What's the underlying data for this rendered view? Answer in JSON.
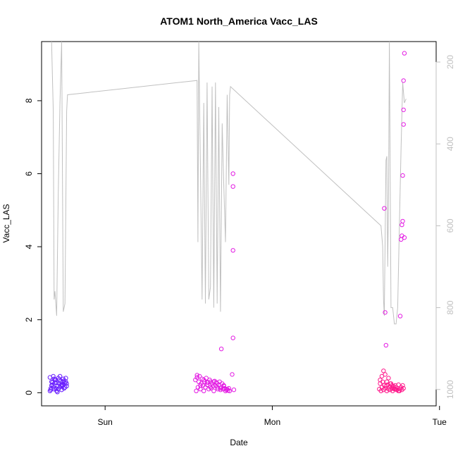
{
  "chart_data": {
    "type": "scatter",
    "title": "ATOM1 North_America Vacc_LAS",
    "xlabel": "Date",
    "ylabel": "Vacc_LAS",
    "x_tick_labels": [
      "Sun",
      "Mon",
      "Tue"
    ],
    "xlim": [
      -0.38,
      1.98
    ],
    "ylim": [
      -0.36,
      9.62
    ],
    "y_ticks": [
      0,
      2,
      4,
      6,
      8
    ],
    "y2_ticks": [
      200,
      400,
      600,
      800,
      1000
    ],
    "y2lim": [
      1040,
      150
    ],
    "y2_reversed": true,
    "grid": false,
    "legend": "none",
    "colors": {
      "line": "#c0c0c0",
      "right_axis": "#c0c0c0",
      "cluster1": "#6a1fff",
      "cluster2": "#e31be3",
      "cluster3": "#ff1a8c"
    },
    "line_series": {
      "axis": "right",
      "x": [
        -0.32,
        -0.31,
        -0.305,
        -0.3,
        -0.29,
        -0.28,
        -0.27,
        -0.26,
        -0.25,
        -0.24,
        -0.23,
        -0.225,
        0.55,
        0.555,
        0.56,
        0.57,
        0.58,
        0.59,
        0.6,
        0.61,
        0.62,
        0.63,
        0.64,
        0.65,
        0.66,
        0.67,
        0.68,
        0.69,
        0.7,
        0.71,
        0.72,
        0.73,
        0.74,
        0.745,
        0.75,
        1.65,
        1.66,
        1.665,
        1.67,
        1.68,
        1.685,
        1.69,
        1.695,
        1.7,
        1.71,
        1.72,
        1.73,
        1.74,
        1.75,
        1.76,
        1.77,
        1.78,
        1.79,
        1.8
      ],
      "y": [
        150,
        320,
        780,
        760,
        820,
        520,
        300,
        150,
        810,
        790,
        320,
        280,
        245,
        640,
        150,
        450,
        780,
        300,
        790,
        250,
        780,
        750,
        260,
        800,
        250,
        790,
        310,
        810,
        350,
        500,
        640,
        280,
        500,
        280,
        260,
        600,
        650,
        780,
        820,
        440,
        430,
        700,
        540,
        150,
        800,
        800,
        840,
        840,
        800,
        600,
        410,
        250,
        300,
        290
      ],
      "breaks_after_index": [
        11,
        34
      ]
    },
    "series": [
      {
        "axis": "left",
        "color": "#6a1fff",
        "x": [
          -0.33,
          -0.325,
          -0.32,
          -0.315,
          -0.31,
          -0.305,
          -0.3,
          -0.295,
          -0.29,
          -0.285,
          -0.28,
          -0.275,
          -0.27,
          -0.265,
          -0.26,
          -0.255,
          -0.25,
          -0.245,
          -0.24,
          -0.235,
          -0.23,
          -0.33,
          -0.32,
          -0.31,
          -0.3,
          -0.29,
          -0.28,
          -0.27,
          -0.26,
          -0.25,
          -0.24,
          -0.23,
          -0.325,
          -0.305,
          -0.285,
          -0.265,
          -0.245,
          -0.235,
          -0.315,
          -0.295,
          -0.275,
          -0.255
        ],
        "y": [
          0.05,
          0.12,
          0.3,
          0.22,
          0.45,
          0.1,
          0.28,
          0.35,
          0.05,
          0.18,
          0.4,
          0.25,
          0.15,
          0.32,
          0.08,
          0.22,
          0.38,
          0.12,
          0.26,
          0.3,
          0.18,
          0.42,
          0.2,
          0.15,
          0.35,
          0.27,
          0.1,
          0.45,
          0.22,
          0.3,
          0.15,
          0.25,
          0.08,
          0.38,
          0.02,
          0.2,
          0.33,
          0.4,
          0.28,
          0.12,
          0.35,
          0.18
        ]
      },
      {
        "axis": "left",
        "color": "#e31be3",
        "x": [
          0.54,
          0.545,
          0.55,
          0.555,
          0.56,
          0.565,
          0.57,
          0.575,
          0.58,
          0.585,
          0.59,
          0.595,
          0.6,
          0.605,
          0.61,
          0.615,
          0.62,
          0.625,
          0.63,
          0.635,
          0.64,
          0.645,
          0.65,
          0.655,
          0.66,
          0.665,
          0.67,
          0.675,
          0.68,
          0.685,
          0.69,
          0.695,
          0.7,
          0.705,
          0.71,
          0.715,
          0.72,
          0.725,
          0.73,
          0.735,
          0.74,
          0.745,
          0.55,
          0.57,
          0.59,
          0.61,
          0.63,
          0.65,
          0.67,
          0.69,
          0.71,
          0.73,
          0.695,
          0.76,
          0.765,
          0.765,
          0.765,
          0.765,
          0.77
        ],
        "y": [
          0.35,
          0.05,
          0.48,
          0.15,
          0.3,
          0.45,
          0.1,
          0.25,
          0.38,
          0.2,
          0.05,
          0.3,
          0.15,
          0.4,
          0.22,
          0.28,
          0.1,
          0.35,
          0.3,
          0.12,
          0.25,
          0.18,
          0.05,
          0.32,
          0.2,
          0.28,
          0.15,
          0.1,
          0.22,
          0.3,
          0.08,
          0.15,
          0.25,
          0.1,
          0.18,
          0.12,
          0.05,
          0.08,
          0.1,
          0.06,
          0.12,
          0.05,
          0.42,
          0.2,
          0.35,
          0.28,
          0.15,
          0.3,
          0.25,
          0.12,
          0.2,
          0.1,
          1.2,
          0.5,
          1.5,
          3.9,
          5.65,
          6.0,
          0.08
        ]
      },
      {
        "axis": "left",
        "color": "#ff1a8c",
        "x": [
          1.64,
          1.645,
          1.65,
          1.655,
          1.66,
          1.665,
          1.67,
          1.675,
          1.68,
          1.685,
          1.69,
          1.695,
          1.7,
          1.705,
          1.71,
          1.715,
          1.72,
          1.725,
          1.73,
          1.735,
          1.74,
          1.745,
          1.75,
          1.755,
          1.76,
          1.765,
          1.77,
          1.775,
          1.78,
          1.785,
          1.645,
          1.655,
          1.665,
          1.675,
          1.685,
          1.695,
          1.705,
          1.715,
          1.725,
          1.735,
          1.745,
          1.755
        ],
        "y": [
          0.1,
          0.25,
          0.05,
          0.15,
          0.3,
          0.08,
          0.2,
          0.12,
          0.18,
          0.05,
          0.22,
          0.1,
          0.15,
          0.08,
          0.25,
          0.12,
          0.05,
          0.18,
          0.1,
          0.2,
          0.15,
          0.08,
          0.12,
          0.22,
          0.05,
          0.1,
          0.15,
          0.08,
          0.2,
          0.12,
          0.35,
          0.45,
          0.6,
          0.5,
          0.3,
          0.4,
          0.25,
          0.2,
          0.15,
          0.1,
          0.08,
          0.05
        ]
      },
      {
        "axis": "left",
        "color": "#e31be3",
        "x": [
          1.67,
          1.675,
          1.68,
          1.765,
          1.77,
          1.775,
          1.775,
          1.78,
          1.78,
          1.785,
          1.785,
          1.785,
          1.79,
          1.79
        ],
        "y": [
          5.05,
          2.2,
          1.3,
          2.1,
          4.2,
          4.3,
          4.6,
          4.7,
          5.95,
          7.35,
          7.75,
          8.55,
          9.3,
          4.25
        ]
      }
    ]
  }
}
